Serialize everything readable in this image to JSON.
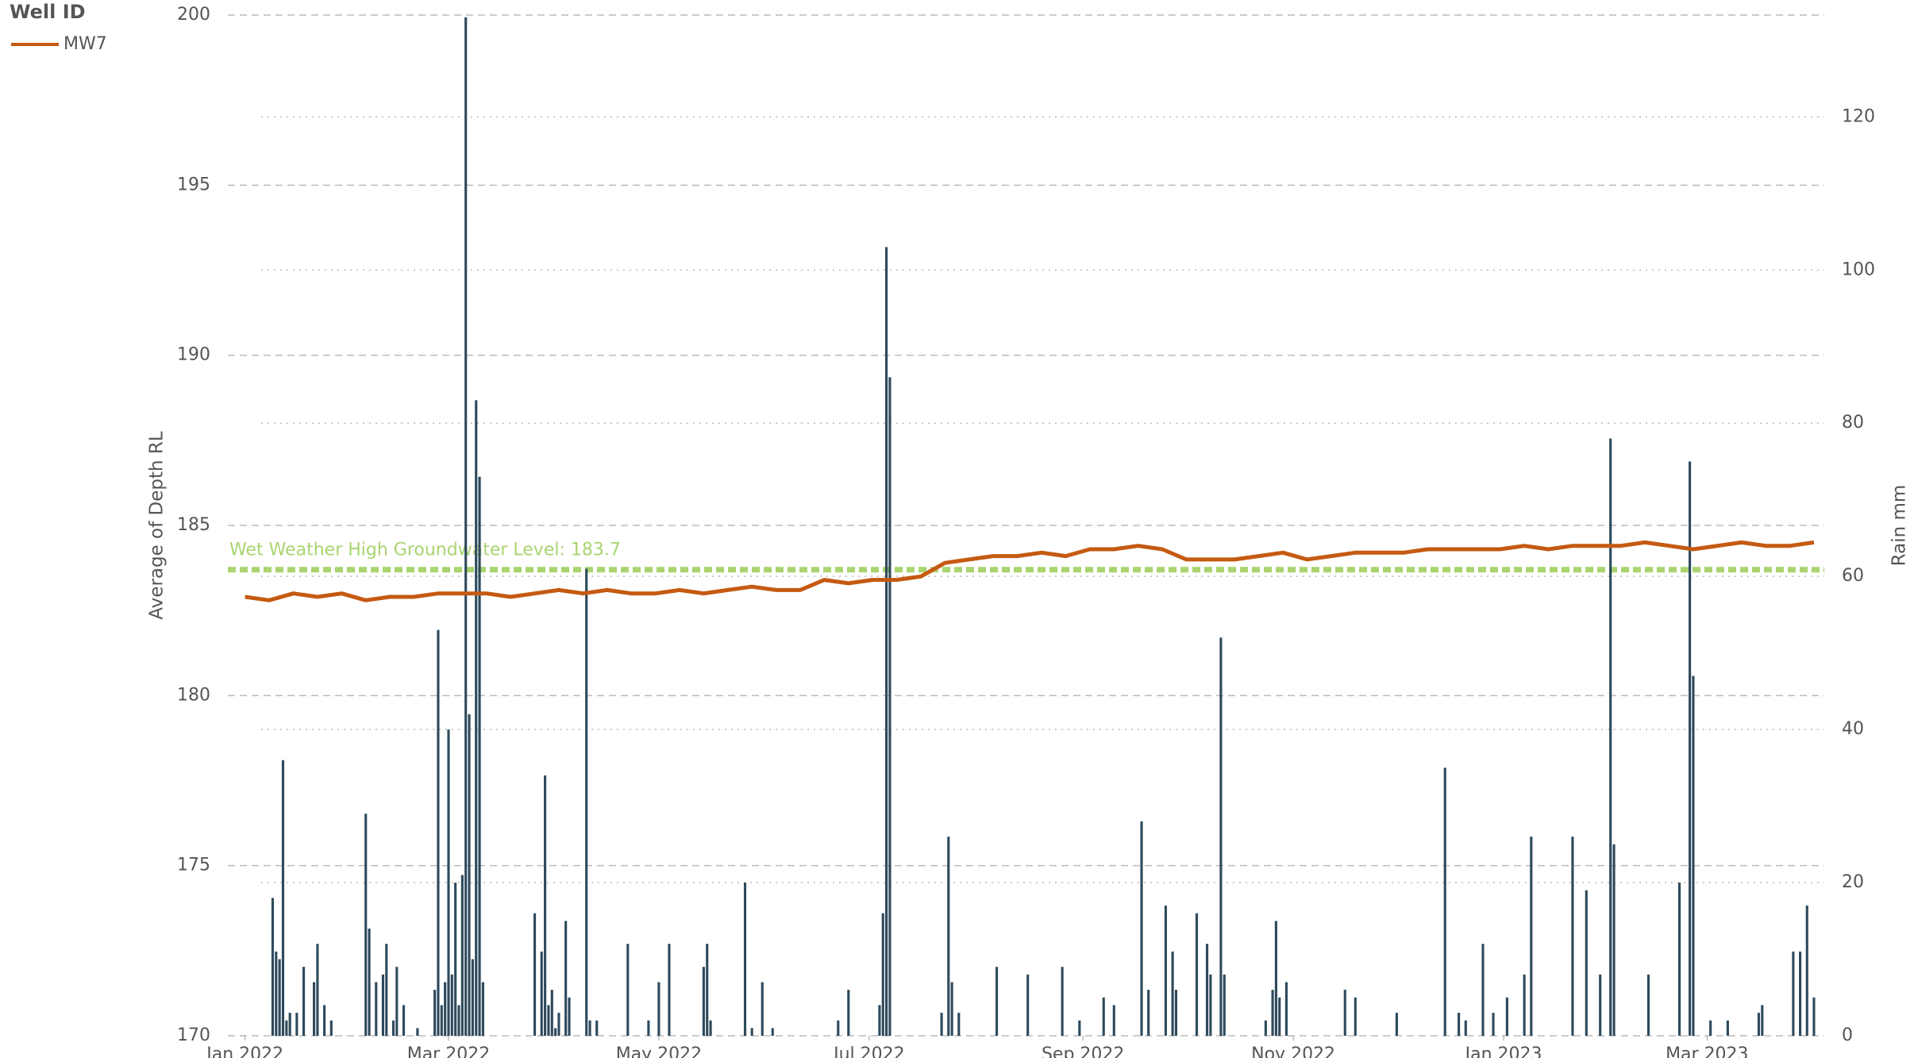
{
  "chart_data": {
    "type": "line",
    "legend_title": "Well ID",
    "y_label": "Average of Depth RL",
    "y2_label": "Rain mm",
    "xlim": [
      -5,
      458
    ],
    "xticks": [
      {
        "value": 0,
        "label": "Jan 2022"
      },
      {
        "value": 59,
        "label": "Mar 2022"
      },
      {
        "value": 120,
        "label": "May 2022"
      },
      {
        "value": 181,
        "label": "Jul 2022"
      },
      {
        "value": 243,
        "label": "Sep 2022"
      },
      {
        "value": 304,
        "label": "Nov 2022"
      },
      {
        "value": 365,
        "label": "Jan 2023"
      },
      {
        "value": 424,
        "label": "Mar 2023"
      }
    ],
    "ylim": [
      170,
      200
    ],
    "yticks": [
      170,
      175,
      180,
      185,
      190,
      195,
      200
    ],
    "y2lim": [
      0,
      133.3
    ],
    "y2ticks": [
      0,
      20,
      40,
      60,
      80,
      100,
      120
    ],
    "grid": true,
    "reference_line": {
      "value": 183.7,
      "label": "Wet Weather High Groundwater Level: 183.7",
      "color": "#a9d46f"
    },
    "series": [
      {
        "name": "MW7",
        "type": "line",
        "color": "#c55a11",
        "x": [
          0,
          7,
          14,
          21,
          28,
          35,
          42,
          49,
          56,
          63,
          70,
          77,
          84,
          91,
          98,
          105,
          112,
          119,
          126,
          133,
          140,
          147,
          154,
          161,
          168,
          175,
          182,
          189,
          196,
          203,
          210,
          217,
          224,
          231,
          238,
          245,
          252,
          259,
          266,
          273,
          280,
          287,
          294,
          301,
          308,
          315,
          322,
          329,
          336,
          343,
          350,
          357,
          364,
          371,
          378,
          385,
          392,
          399,
          406,
          413,
          420,
          427,
          434,
          441,
          448,
          455
        ],
        "values": [
          182.9,
          182.8,
          183.0,
          182.9,
          183.0,
          182.8,
          182.9,
          182.9,
          183.0,
          183.0,
          183.0,
          182.9,
          183.0,
          183.1,
          183.0,
          183.1,
          183.0,
          183.0,
          183.1,
          183.0,
          183.1,
          183.2,
          183.1,
          183.1,
          183.4,
          183.3,
          183.4,
          183.4,
          183.5,
          183.9,
          184.0,
          184.1,
          184.1,
          184.2,
          184.1,
          184.3,
          184.3,
          184.4,
          184.3,
          184.0,
          184.0,
          184.0,
          184.1,
          184.2,
          184.0,
          184.1,
          184.2,
          184.2,
          184.2,
          184.3,
          184.3,
          184.3,
          184.3,
          184.4,
          184.3,
          184.4,
          184.4,
          184.4,
          184.5,
          184.4,
          184.3,
          184.4,
          184.5,
          184.4,
          184.4,
          184.5
        ]
      },
      {
        "type": "bar",
        "axis": "y2",
        "color": "#2e4a5c",
        "x": [
          8,
          9,
          10,
          11,
          12,
          13,
          15,
          17,
          20,
          21,
          23,
          25,
          35,
          36,
          38,
          40,
          41,
          43,
          44,
          46,
          50,
          55,
          56,
          57,
          58,
          59,
          60,
          61,
          62,
          63,
          64,
          65,
          66,
          67,
          68,
          69,
          84,
          86,
          87,
          88,
          89,
          90,
          91,
          93,
          94,
          99,
          100,
          102,
          111,
          117,
          120,
          123,
          133,
          134,
          135,
          145,
          147,
          150,
          153,
          172,
          175,
          184,
          185,
          186,
          187,
          202,
          204,
          205,
          207,
          218,
          227,
          237,
          242,
          249,
          252,
          260,
          262,
          267,
          269,
          270,
          276,
          279,
          280,
          283,
          284,
          296,
          298,
          299,
          300,
          302,
          319,
          322,
          334,
          348,
          352,
          354,
          359,
          362,
          366,
          371,
          373,
          385,
          389,
          393,
          396,
          397,
          407,
          416,
          419,
          420,
          425,
          430,
          439,
          440,
          449,
          451,
          453,
          455
        ],
        "values": [
          18,
          11,
          10,
          36,
          2,
          3,
          3,
          9,
          7,
          12,
          4,
          2,
          29,
          14,
          7,
          8,
          12,
          2,
          9,
          4,
          1,
          6,
          53,
          4,
          7,
          40,
          8,
          20,
          4,
          21,
          133,
          42,
          10,
          83,
          73,
          7,
          16,
          11,
          34,
          4,
          6,
          1,
          3,
          15,
          5,
          61,
          2,
          2,
          12,
          2,
          7,
          12,
          9,
          12,
          2,
          20,
          1,
          7,
          1,
          2,
          6,
          4,
          16,
          103,
          86,
          3,
          26,
          7,
          3,
          9,
          8,
          9,
          2,
          5,
          4,
          28,
          6,
          17,
          11,
          6,
          16,
          12,
          8,
          52,
          8,
          2,
          6,
          15,
          5,
          7,
          6,
          5,
          3,
          35,
          3,
          2,
          12,
          3,
          5,
          8,
          26,
          26,
          19,
          8,
          78,
          25,
          8,
          20,
          75,
          47,
          2,
          2,
          3,
          4,
          11,
          11,
          17,
          5
        ]
      }
    ]
  }
}
